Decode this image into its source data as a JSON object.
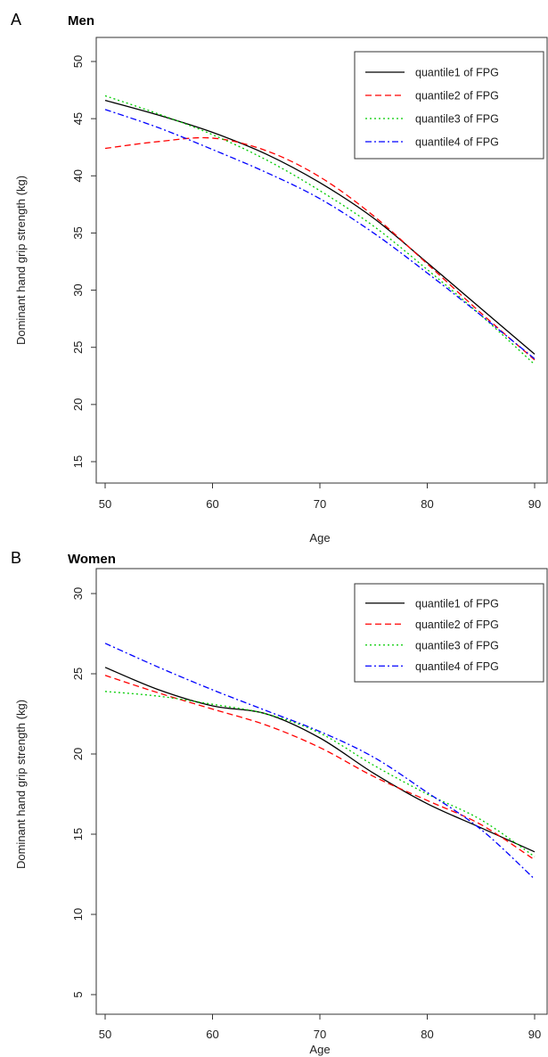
{
  "chart_data": [
    {
      "type": "line",
      "panel": "A",
      "title": "Men",
      "xlabel": "Age",
      "ylabel": "Dominant  hand grip strength (kg)",
      "xlim": [
        50,
        90
      ],
      "ylim": [
        15,
        50
      ],
      "xticks": [
        50,
        60,
        70,
        80,
        90
      ],
      "yticks": [
        15,
        20,
        25,
        30,
        35,
        40,
        45,
        50
      ],
      "legend_position": "top-right",
      "x": [
        50,
        55,
        60,
        65,
        70,
        75,
        80,
        85,
        90
      ],
      "series": [
        {
          "name": "quantile1 of FPG",
          "color": "#000000",
          "dash": "solid",
          "values": [
            46.6,
            45.3,
            43.8,
            41.9,
            39.4,
            36.3,
            32.4,
            28.4,
            24.4
          ]
        },
        {
          "name": "quantile2 of FPG",
          "color": "#ff0000",
          "dash": "dashed",
          "values": [
            42.4,
            43.0,
            43.3,
            42.2,
            39.9,
            36.5,
            32.3,
            28.0,
            23.9
          ]
        },
        {
          "name": "quantile3 of FPG",
          "color": "#00cc00",
          "dash": "dotted",
          "values": [
            47.0,
            45.4,
            43.6,
            41.4,
            38.7,
            35.6,
            31.8,
            27.8,
            23.5
          ]
        },
        {
          "name": "quantile4 of FPG",
          "color": "#0000ff",
          "dash": "dotdash",
          "values": [
            45.8,
            44.2,
            42.3,
            40.3,
            38.0,
            35.0,
            31.5,
            27.8,
            24.0
          ]
        }
      ]
    },
    {
      "type": "line",
      "panel": "B",
      "title": "Women",
      "xlabel": "Age",
      "ylabel": "Dominant  hand grip strength (kg)",
      "xlim": [
        50,
        90
      ],
      "ylim": [
        5,
        30
      ],
      "xticks": [
        50,
        60,
        70,
        80,
        90
      ],
      "yticks": [
        5,
        10,
        15,
        20,
        25,
        30
      ],
      "legend_position": "top-right",
      "x": [
        50,
        55,
        60,
        65,
        70,
        75,
        80,
        85,
        90
      ],
      "series": [
        {
          "name": "quantile1 of FPG",
          "color": "#000000",
          "dash": "solid",
          "values": [
            25.4,
            24.0,
            23.0,
            22.5,
            21.0,
            18.8,
            16.9,
            15.4,
            13.9
          ]
        },
        {
          "name": "quantile2 of FPG",
          "color": "#ff0000",
          "dash": "dashed",
          "values": [
            24.9,
            23.8,
            22.8,
            21.8,
            20.4,
            18.6,
            17.1,
            15.6,
            13.4
          ]
        },
        {
          "name": "quantile3 of FPG",
          "color": "#00cc00",
          "dash": "dotted",
          "values": [
            23.9,
            23.6,
            23.1,
            22.5,
            21.3,
            19.3,
            17.5,
            15.9,
            13.6
          ]
        },
        {
          "name": "quantile4 of FPG",
          "color": "#0000ff",
          "dash": "dotdash",
          "values": [
            26.9,
            25.4,
            24.0,
            22.7,
            21.4,
            19.8,
            17.6,
            15.3,
            12.2
          ]
        }
      ]
    }
  ]
}
